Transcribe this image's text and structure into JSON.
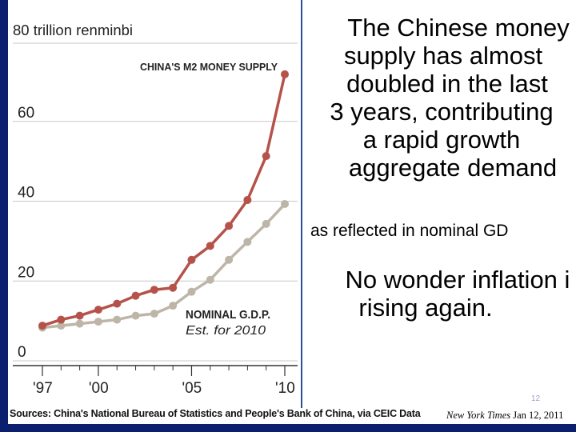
{
  "slide": {
    "headline_lines": [
      "The Chinese money",
      "supply has almost",
      "doubled in the last",
      "3 years, contributing",
      "a rapid growth",
      "aggregate demand"
    ],
    "subline": "as reflected in nominal GD",
    "conclusion_lines": [
      "No wonder inflation i",
      "rising again."
    ],
    "slide_number": "12",
    "citation_source": "New York Times",
    "citation_date": "Jan 12, 2011"
  },
  "chart_data": {
    "type": "line",
    "ylabel": "80 trillion renminbi",
    "yticks": [
      "0",
      "20",
      "40",
      "60"
    ],
    "ylim": [
      0,
      80
    ],
    "xticks": [
      "'97",
      "'00",
      "'05",
      "'10"
    ],
    "x": [
      1997,
      1998,
      1999,
      2000,
      2001,
      2002,
      2003,
      2004,
      2005,
      2006,
      2007,
      2008,
      2009,
      2010
    ],
    "series": [
      {
        "name": "CHINA'S M2 MONEY SUPPLY",
        "color": "#b5524a",
        "values": [
          6.0,
          7.5,
          8.5,
          10.0,
          11.5,
          13.5,
          15.0,
          15.5,
          22.5,
          26.0,
          31.0,
          37.5,
          48.5,
          69.0
        ]
      },
      {
        "name": "NOMINAL G.D.P.",
        "color": "#bdb6a8",
        "values": [
          5.5,
          6.0,
          6.5,
          7.0,
          7.5,
          8.5,
          9.0,
          11.0,
          14.5,
          17.5,
          22.5,
          27.0,
          31.5,
          36.5
        ]
      }
    ],
    "annotation": "Est. for 2010",
    "source": "Sources: China's National Bureau of Statistics and People's Bank of China, via CEIC Data"
  }
}
